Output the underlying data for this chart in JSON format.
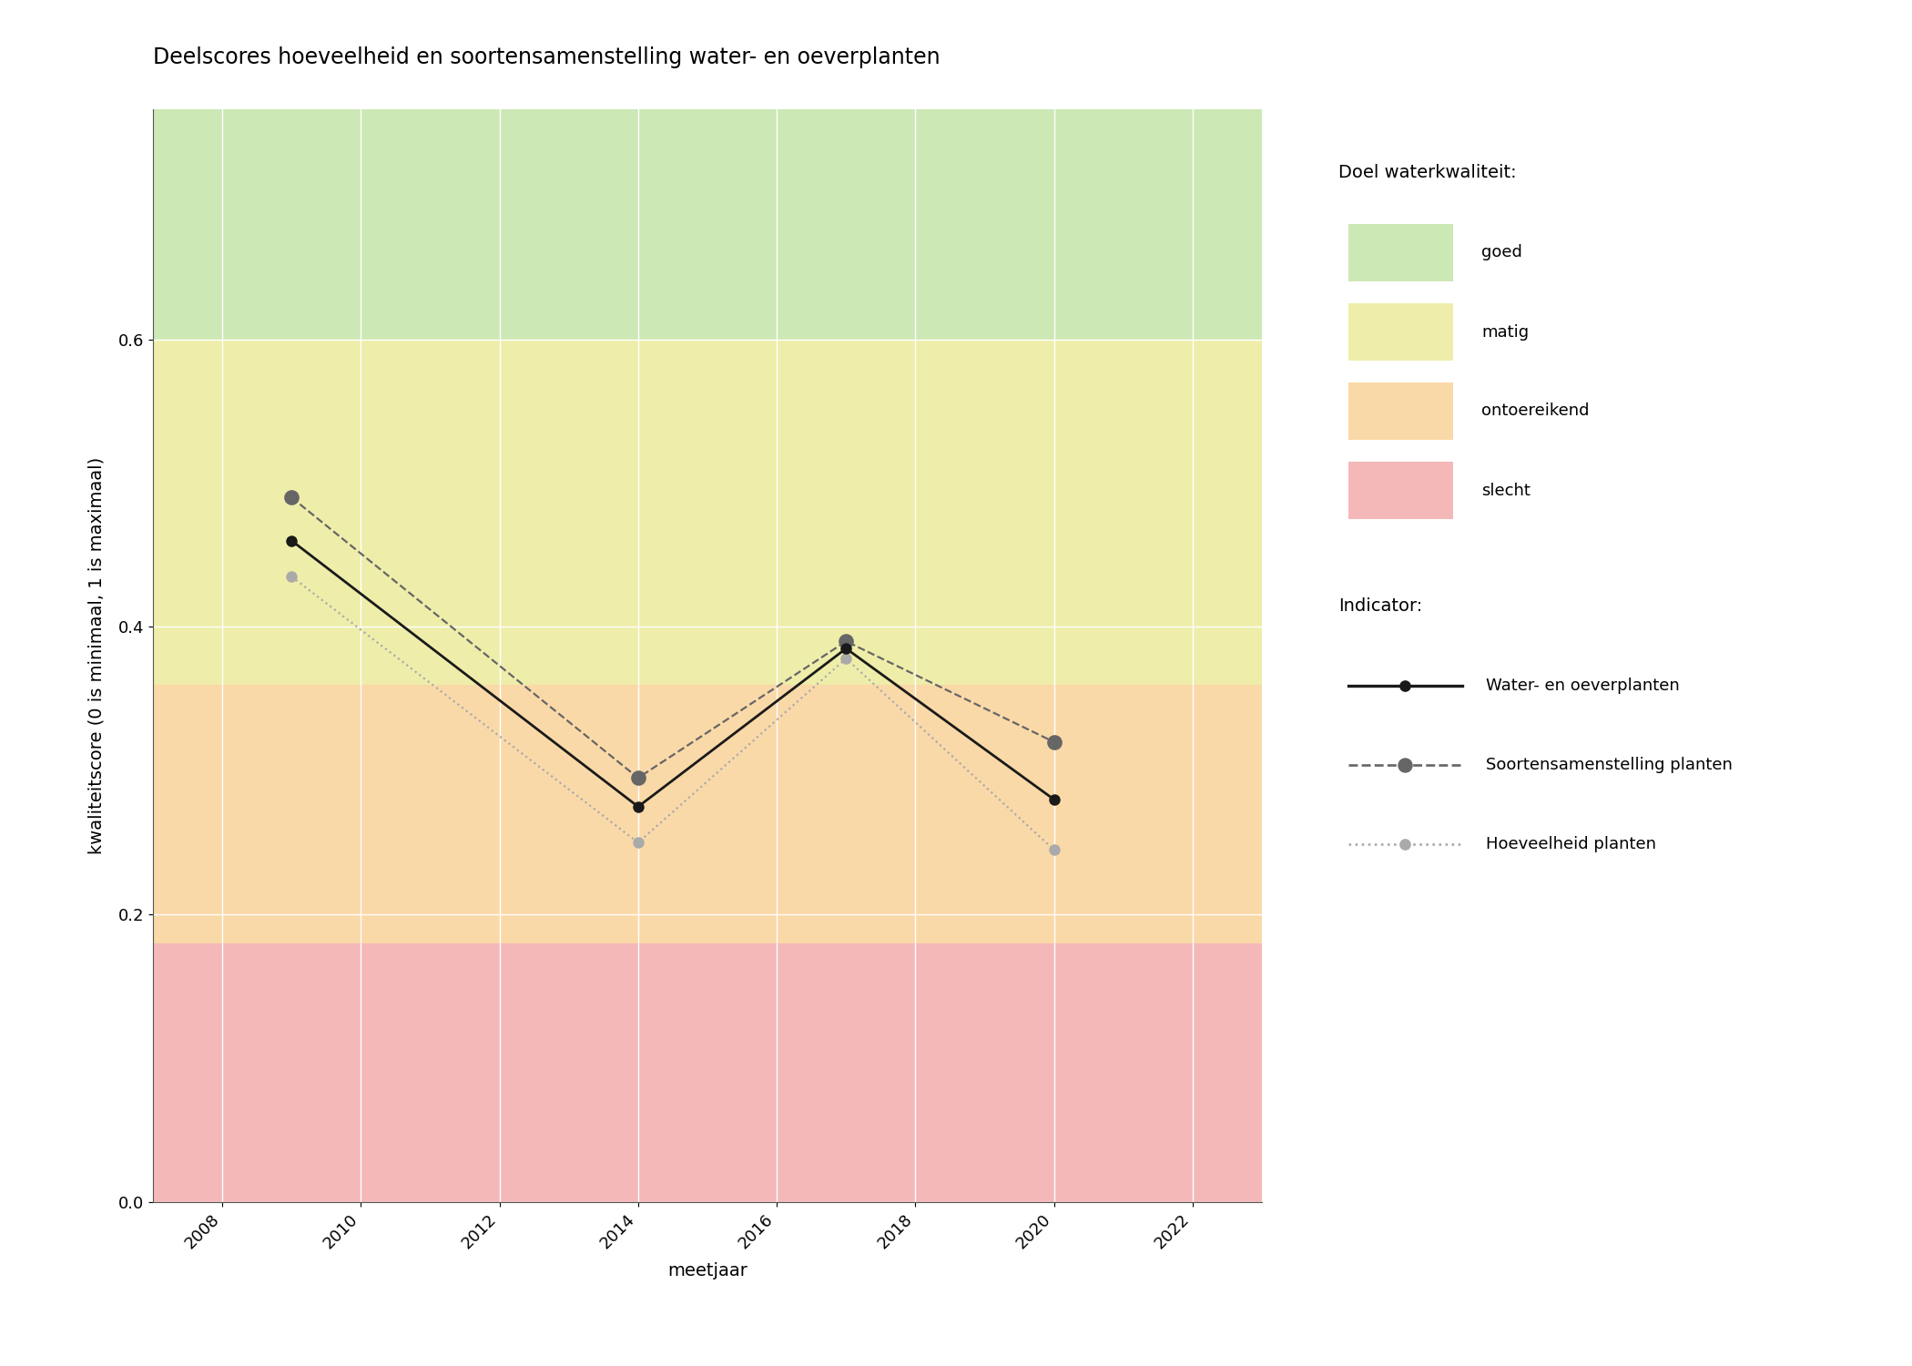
{
  "title": "Deelscores hoeveelheid en soortensamenstelling water- en oeverplanten",
  "xlabel": "meetjaar",
  "ylabel": "kwaliteitscore (0 is minimaal, 1 is maximaal)",
  "xlim": [
    2007,
    2023
  ],
  "ylim": [
    0.0,
    0.76
  ],
  "xticks": [
    2008,
    2010,
    2012,
    2014,
    2016,
    2018,
    2020,
    2022
  ],
  "yticks": [
    0.0,
    0.2,
    0.4,
    0.6
  ],
  "background_color": "#ffffff",
  "plot_bg_color": "#f0f0f0",
  "quality_bands": [
    {
      "name": "goed",
      "ymin": 0.6,
      "ymax": 0.76,
      "color": "#cce8b5"
    },
    {
      "name": "matig",
      "ymin": 0.36,
      "ymax": 0.6,
      "color": "#eeeeaa"
    },
    {
      "name": "ontoereikend",
      "ymin": 0.18,
      "ymax": 0.36,
      "color": "#fad9a8"
    },
    {
      "name": "slecht",
      "ymin": 0.0,
      "ymax": 0.18,
      "color": "#f5b8b8"
    }
  ],
  "series": {
    "water_en_oeverplanten": {
      "years": [
        2009,
        2014,
        2017,
        2020
      ],
      "values": [
        0.46,
        0.275,
        0.385,
        0.28
      ],
      "color": "#1a1a1a",
      "linestyle": "solid",
      "linewidth": 2.0,
      "marker": "o",
      "markersize": 9,
      "zorder": 5,
      "label": "Water- en oeverplanten"
    },
    "soortensamenstelling": {
      "years": [
        2009,
        2014,
        2017,
        2020
      ],
      "values": [
        0.49,
        0.295,
        0.39,
        0.32
      ],
      "color": "#666666",
      "linestyle": "dashed",
      "linewidth": 1.6,
      "marker": "o",
      "markersize": 12,
      "zorder": 4,
      "label": "Soortensamenstelling planten"
    },
    "hoeveelheid": {
      "years": [
        2009,
        2014,
        2017,
        2020
      ],
      "values": [
        0.435,
        0.25,
        0.378,
        0.245
      ],
      "color": "#aaaaaa",
      "linestyle": "dotted",
      "linewidth": 1.6,
      "marker": "o",
      "markersize": 9,
      "zorder": 3,
      "label": "Hoeveelheid planten"
    }
  },
  "legend_quality_labels": [
    "goed",
    "matig",
    "ontoereikend",
    "slecht"
  ],
  "legend_quality_colors": {
    "goed": "#cce8b5",
    "matig": "#eeeeaa",
    "ontoereikend": "#fad9a8",
    "slecht": "#f5b8b8"
  },
  "doel_label": "Doel waterkwaliteit:",
  "indicator_label": "Indicator:",
  "title_fontsize": 17,
  "axis_label_fontsize": 14,
  "tick_fontsize": 13,
  "legend_fontsize": 13
}
